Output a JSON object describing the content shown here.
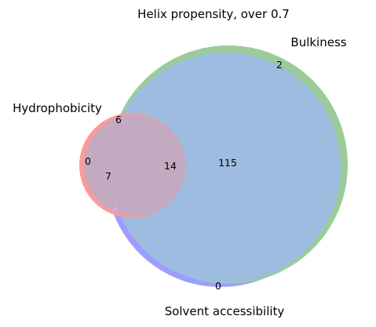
{
  "title": "Helix propensity, over 0.7",
  "sets": {
    "hydrophobicity": {
      "label": "Hydrophobicity",
      "color": "#ff7f7f"
    },
    "bulkiness": {
      "label": "Bulkiness",
      "color": "#7fbf7f"
    },
    "solvent_accessibility": {
      "label": "Solvent accessibility",
      "color": "#7f7fff"
    }
  },
  "chart_data": {
    "type": "venn3",
    "title": "Helix propensity, over 0.7",
    "sets": [
      "Hydrophobicity",
      "Bulkiness",
      "Solvent accessibility"
    ],
    "regions": [
      {
        "sets": [
          "Hydrophobicity"
        ],
        "count": 0
      },
      {
        "sets": [
          "Bulkiness"
        ],
        "count": 2
      },
      {
        "sets": [
          "Solvent accessibility"
        ],
        "count": 0
      },
      {
        "sets": [
          "Hydrophobicity",
          "Bulkiness"
        ],
        "count": 6
      },
      {
        "sets": [
          "Hydrophobicity",
          "Solvent accessibility"
        ],
        "count": 7
      },
      {
        "sets": [
          "Bulkiness",
          "Solvent accessibility"
        ],
        "count": 115
      },
      {
        "sets": [
          "Hydrophobicity",
          "Bulkiness",
          "Solvent accessibility"
        ],
        "count": 14
      }
    ]
  },
  "counts": {
    "h_only": "0",
    "b_only": "2",
    "s_only": "0",
    "h_b": "6",
    "h_s": "7",
    "b_s": "115",
    "all": "14"
  }
}
